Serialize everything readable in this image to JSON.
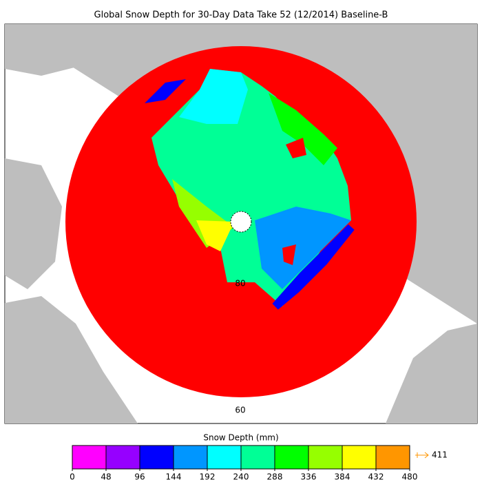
{
  "title": "Global Snow Depth for 30-Day Data Take 52 (12/2014) Baseline-B",
  "map": {
    "latitude_labels": [
      80,
      60
    ]
  },
  "colorbar": {
    "label": "Snow Depth (mm)",
    "ticks": [
      0,
      48,
      96,
      144,
      192,
      240,
      288,
      336,
      384,
      432,
      480
    ],
    "colors": [
      "#ff00ff",
      "#9600ff",
      "#0000ff",
      "#0096ff",
      "#00ffff",
      "#00ff96",
      "#00ff00",
      "#96ff00",
      "#ffff00",
      "#ff9600"
    ],
    "max_value": 411,
    "max_color": "#ff9600"
  }
}
